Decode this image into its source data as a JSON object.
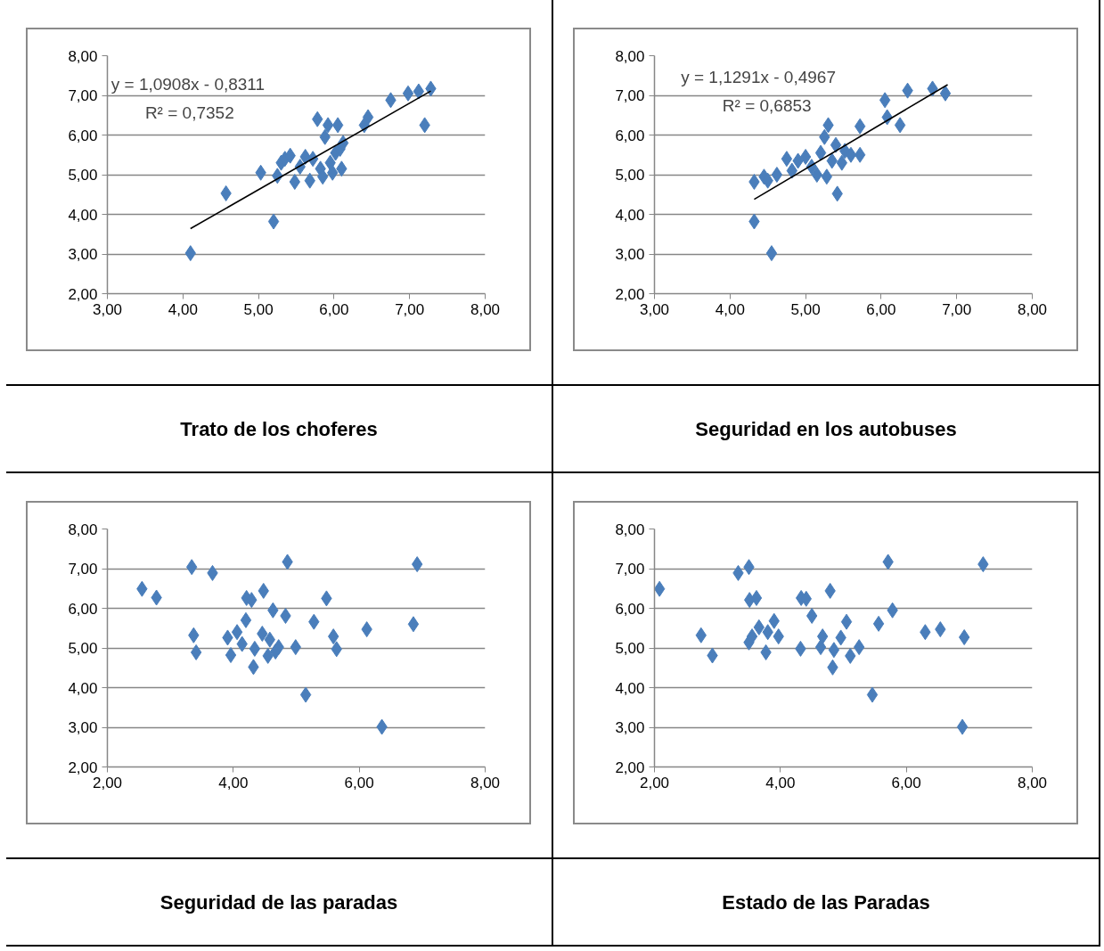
{
  "chart_data": [
    {
      "type": "scatter",
      "title": "Trato de los choferes",
      "xlim": [
        3,
        8
      ],
      "ylim": [
        2,
        8
      ],
      "xticks": [
        {
          "value": 3,
          "label": "3,00"
        },
        {
          "value": 4,
          "label": "4,00"
        },
        {
          "value": 5,
          "label": "5,00"
        },
        {
          "value": 6,
          "label": "6,00"
        },
        {
          "value": 7,
          "label": "7,00"
        },
        {
          "value": 8,
          "label": "8,00"
        }
      ],
      "yticks": [
        {
          "value": 2,
          "label": "2,00"
        },
        {
          "value": 3,
          "label": "3,00"
        },
        {
          "value": 4,
          "label": "4,00"
        },
        {
          "value": 5,
          "label": "5,00"
        },
        {
          "value": 6,
          "label": "6,00"
        },
        {
          "value": 7,
          "label": "7,00"
        },
        {
          "value": 8,
          "label": "8,00"
        }
      ],
      "grid": "y",
      "marker": "diamond",
      "series": [
        {
          "color": "#4a7ebb",
          "x": [
            4.1,
            4.57,
            5.03,
            5.2,
            5.25,
            5.3,
            5.35,
            5.42,
            5.48,
            5.55,
            5.62,
            5.68,
            5.72,
            5.78,
            5.82,
            5.85,
            5.88,
            5.92,
            5.95,
            5.98,
            6.02,
            6.05,
            6.08,
            6.1,
            6.12,
            6.4,
            6.45,
            6.75,
            6.98,
            7.12,
            7.2,
            7.28
          ],
          "values": [
            3.02,
            4.53,
            5.05,
            3.82,
            4.97,
            5.3,
            5.4,
            5.48,
            4.82,
            5.2,
            5.45,
            4.85,
            5.4,
            6.4,
            5.15,
            4.95,
            5.95,
            6.25,
            5.3,
            5.05,
            5.55,
            6.25,
            5.65,
            5.15,
            5.8,
            6.25,
            6.45,
            6.88,
            7.05,
            7.1,
            6.25,
            7.17
          ]
        },
        {
          "type": "line",
          "marker": "none",
          "color": "#000000",
          "x": [
            4.1,
            7.28
          ],
          "values": [
            3.64,
            7.11
          ]
        }
      ],
      "annotations": [
        "y = 1,0908x - 0,8311",
        "R² = 0,7352"
      ]
    },
    {
      "type": "scatter",
      "title": "Seguridad en los autobuses",
      "xlim": [
        3,
        8
      ],
      "ylim": [
        2,
        8
      ],
      "xticks": [
        {
          "value": 3,
          "label": "3,00"
        },
        {
          "value": 4,
          "label": "4,00"
        },
        {
          "value": 5,
          "label": "5,00"
        },
        {
          "value": 6,
          "label": "6,00"
        },
        {
          "value": 7,
          "label": "7,00"
        },
        {
          "value": 8,
          "label": "8,00"
        }
      ],
      "yticks": [
        {
          "value": 2,
          "label": "2,00"
        },
        {
          "value": 3,
          "label": "3,00"
        },
        {
          "value": 4,
          "label": "4,00"
        },
        {
          "value": 5,
          "label": "5,00"
        },
        {
          "value": 6,
          "label": "6,00"
        },
        {
          "value": 7,
          "label": "7,00"
        },
        {
          "value": 8,
          "label": "8,00"
        }
      ],
      "grid": "y",
      "marker": "diamond",
      "series": [
        {
          "color": "#4a7ebb",
          "x": [
            4.32,
            4.32,
            4.45,
            4.5,
            4.55,
            4.62,
            4.75,
            4.82,
            4.9,
            5.0,
            5.08,
            5.15,
            5.2,
            5.25,
            5.28,
            5.3,
            5.35,
            5.4,
            5.42,
            5.48,
            5.52,
            5.6,
            5.72,
            5.72,
            6.05,
            6.08,
            6.25,
            6.35,
            6.68,
            6.85
          ],
          "values": [
            4.82,
            3.82,
            4.95,
            4.85,
            3.02,
            5.0,
            5.4,
            5.1,
            5.35,
            5.45,
            5.2,
            5.0,
            5.55,
            5.95,
            4.95,
            6.25,
            5.35,
            5.75,
            4.52,
            5.3,
            5.6,
            5.5,
            5.5,
            6.22,
            6.88,
            6.45,
            6.25,
            7.12,
            7.17,
            7.05
          ]
        },
        {
          "type": "line",
          "marker": "none",
          "color": "#000000",
          "x": [
            4.32,
            6.88
          ],
          "values": [
            4.38,
            7.27
          ]
        }
      ],
      "annotations": [
        "y = 1,1291x - 0,4967",
        "R² = 0,6853"
      ]
    },
    {
      "type": "scatter",
      "title": "Seguridad de las paradas",
      "xlim": [
        2,
        8
      ],
      "ylim": [
        2,
        8
      ],
      "xticks": [
        {
          "value": 2,
          "label": "2,00"
        },
        {
          "value": 4,
          "label": "4,00"
        },
        {
          "value": 6,
          "label": "6,00"
        },
        {
          "value": 8,
          "label": "8,00"
        }
      ],
      "yticks": [
        {
          "value": 2,
          "label": "2,00"
        },
        {
          "value": 3,
          "label": "3,00"
        },
        {
          "value": 4,
          "label": "4,00"
        },
        {
          "value": 5,
          "label": "5,00"
        },
        {
          "value": 6,
          "label": "6,00"
        },
        {
          "value": 7,
          "label": "7,00"
        },
        {
          "value": 8,
          "label": "8,00"
        }
      ],
      "grid": "y",
      "marker": "diamond",
      "series": [
        {
          "color": "#4a7ebb",
          "x": [
            2.55,
            2.78,
            3.34,
            3.67,
            3.37,
            3.41,
            3.96,
            3.91,
            4.06,
            4.2,
            4.14,
            4.21,
            4.29,
            4.32,
            4.34,
            4.48,
            4.46,
            4.55,
            4.58,
            4.63,
            4.72,
            4.67,
            4.83,
            4.86,
            4.99,
            5.15,
            5.28,
            5.48,
            5.59,
            5.64,
            6.12,
            6.36,
            6.86,
            6.92
          ],
          "values": [
            6.49,
            6.27,
            7.04,
            6.89,
            5.32,
            4.89,
            4.82,
            5.26,
            5.4,
            5.7,
            5.1,
            6.26,
            6.21,
            4.52,
            4.98,
            6.44,
            5.36,
            4.8,
            5.21,
            5.95,
            5.02,
            4.91,
            5.81,
            7.17,
            5.02,
            3.82,
            5.66,
            6.25,
            5.29,
            4.97,
            5.47,
            3.01,
            5.6,
            7.11
          ]
        }
      ]
    },
    {
      "type": "scatter",
      "title": "Estado de las Paradas",
      "xlim": [
        2,
        8
      ],
      "ylim": [
        2,
        8
      ],
      "xticks": [
        {
          "value": 2,
          "label": "2,00"
        },
        {
          "value": 4,
          "label": "4,00"
        },
        {
          "value": 6,
          "label": "6,00"
        },
        {
          "value": 8,
          "label": "8,00"
        }
      ],
      "yticks": [
        {
          "value": 2,
          "label": "2,00"
        },
        {
          "value": 3,
          "label": "3,00"
        },
        {
          "value": 4,
          "label": "4,00"
        },
        {
          "value": 5,
          "label": "5,00"
        },
        {
          "value": 6,
          "label": "6,00"
        },
        {
          "value": 7,
          "label": "7,00"
        },
        {
          "value": 8,
          "label": "8,00"
        }
      ],
      "grid": "y",
      "marker": "diamond",
      "series": [
        {
          "color": "#4a7ebb",
          "x": [
            2.08,
            2.74,
            2.92,
            3.33,
            3.5,
            3.51,
            3.62,
            3.5,
            3.55,
            3.66,
            3.77,
            3.8,
            3.9,
            3.97,
            4.32,
            4.33,
            4.41,
            4.5,
            4.64,
            4.67,
            4.79,
            4.83,
            4.85,
            4.96,
            5.05,
            5.11,
            5.25,
            5.46,
            5.56,
            5.71,
            5.78,
            6.3,
            6.54,
            6.92,
            6.89,
            7.22
          ],
          "values": [
            6.49,
            5.32,
            4.81,
            6.89,
            7.04,
            6.21,
            6.26,
            5.14,
            5.29,
            5.52,
            4.89,
            5.4,
            5.68,
            5.29,
            4.98,
            6.26,
            6.24,
            5.81,
            5.02,
            5.29,
            6.44,
            4.51,
            4.95,
            5.26,
            5.66,
            4.8,
            5.02,
            3.82,
            5.61,
            7.17,
            5.95,
            5.4,
            5.47,
            5.27,
            3.01,
            7.11
          ]
        }
      ]
    }
  ]
}
